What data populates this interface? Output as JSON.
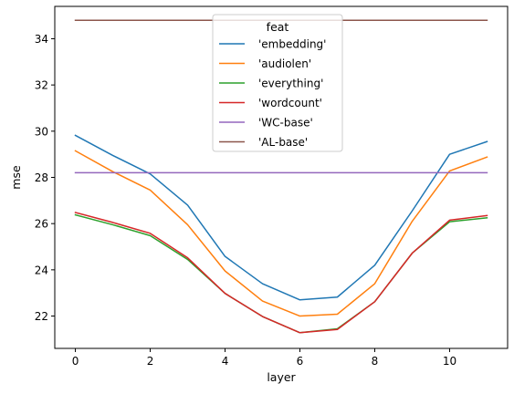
{
  "chart_data": {
    "type": "line",
    "title": "",
    "xlabel": "layer",
    "ylabel": "mse",
    "xlim": [
      -0.55,
      11.55
    ],
    "ylim": [
      20.6,
      35.4
    ],
    "xticks": [
      0,
      2,
      4,
      6,
      8,
      10
    ],
    "yticks": [
      22,
      24,
      26,
      28,
      30,
      32,
      34
    ],
    "grid": false,
    "legend": {
      "title": "feat",
      "placement": "top-center"
    },
    "x": [
      0,
      1,
      2,
      3,
      4,
      5,
      6,
      7,
      8,
      9,
      10,
      11
    ],
    "series": [
      {
        "name": "'embedding'",
        "color": "#1f77b4",
        "values": [
          29.82,
          28.95,
          28.15,
          26.8,
          24.58,
          23.4,
          22.7,
          22.82,
          24.2,
          26.55,
          29.0,
          29.55
        ]
      },
      {
        "name": "'audiolen'",
        "color": "#ff7f0e",
        "values": [
          29.15,
          28.25,
          27.45,
          25.95,
          23.95,
          22.65,
          22.0,
          22.08,
          23.4,
          26.1,
          28.28,
          28.88
        ]
      },
      {
        "name": "'everything'",
        "color": "#2ca02c",
        "values": [
          26.38,
          25.95,
          25.48,
          24.45,
          22.98,
          21.98,
          21.28,
          21.45,
          22.62,
          24.72,
          26.08,
          26.25
        ]
      },
      {
        "name": "'wordcount'",
        "color": "#d62728",
        "values": [
          26.48,
          26.05,
          25.58,
          24.52,
          22.98,
          21.98,
          21.28,
          21.42,
          22.62,
          24.72,
          26.15,
          26.35
        ]
      },
      {
        "name": "'WC-base'",
        "color": "#9467bd",
        "values": [
          28.2,
          28.2,
          28.2,
          28.2,
          28.2,
          28.2,
          28.2,
          28.2,
          28.2,
          28.2,
          28.2,
          28.2
        ]
      },
      {
        "name": "'AL-base'",
        "color": "#8c564b",
        "values": [
          34.8,
          34.8,
          34.8,
          34.8,
          34.8,
          34.8,
          34.8,
          34.8,
          34.8,
          34.8,
          34.8,
          34.8
        ]
      }
    ]
  }
}
